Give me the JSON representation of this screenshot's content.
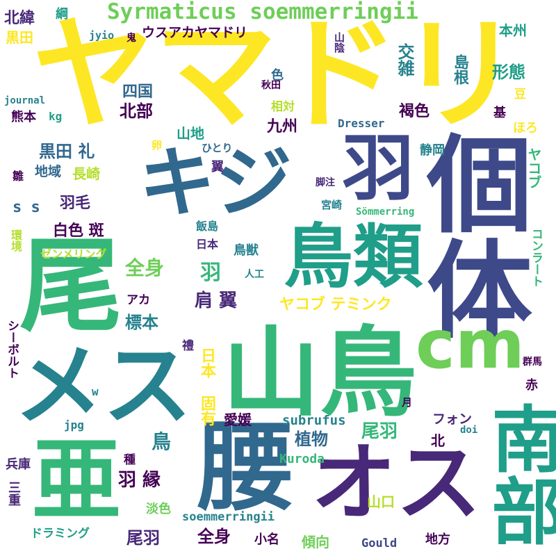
{
  "palette": {
    "yellow": "#fde725",
    "yellow_green": "#b5de2b",
    "light_green": "#6ece58",
    "green": "#35b779",
    "teal": "#1f9e89",
    "teal_blue": "#26828e",
    "blue": "#31688e",
    "indigo": "#3e4989",
    "purple": "#482878",
    "dark_purple": "#440154"
  },
  "words": {
    "yamadori": "ヤマドリ",
    "kiji": "キジ",
    "hane_big": "羽",
    "kotai": "個体",
    "chourui": "鳥類",
    "o": "尾",
    "yamadori_kanji": "山鳥",
    "cm": "cm",
    "mesu": "メス",
    "a": "亜",
    "koshi": "腰",
    "osu": "オス",
    "nanbu": "南部",
    "syrmaticus": "Syrmaticus soemmerringii",
    "hokui": "北緯",
    "kuroda_top": "黒田",
    "tsuna": "綱",
    "jyio": "jyio",
    "oni": "鬼",
    "usuakayamadori": "ウスアカヤマドリ",
    "sanin": "山陰",
    "honshu": "本州",
    "iro": "色",
    "kouzatsu": "交雑",
    "shimane": "島根",
    "keitai": "形態",
    "mame": "豆",
    "shikoku": "四国",
    "akita": "秋田",
    "journal": "journal",
    "soutai": "相対",
    "hokubu": "北部",
    "kasshoku": "褐色",
    "kumamoto": "熊本",
    "kg": "kg",
    "kyushu": "九州",
    "dresser": "Dresser",
    "ki": "基",
    "horo": "ほろ",
    "sanchi": "山地",
    "ran": "卵",
    "hitori": "ひとり",
    "shizuoka": "静岡",
    "kuroda_rei": "黒田 礼",
    "yasukobu": "ヤコブ",
    "hina": "雛",
    "chiiki": "地域",
    "nagasaki": "長崎",
    "tsubasa_small": "翼",
    "kyakuchu": "脚注",
    "ss": "s s",
    "umou": "羽毛",
    "miyazaki": "宮崎",
    "sommerring": "Sömmerring",
    "hakushoku_han": "白色 斑",
    "iijima": "飯島",
    "kankyo": "環境",
    "nihon": "日本",
    "concert": "コンラート",
    "zenmeringu": "ゼンメリング",
    "choujuu": "鳥獣",
    "jinkou": "人工",
    "zenshin_mid": "全身",
    "hane_mid": "羽",
    "kata_tsubasa": "肩 翼",
    "yakobu_temminck": "ヤコブ テミンク",
    "aka": "アカ",
    "siebold": "シーボルト",
    "hyouhon": "標本",
    "rei": "禮",
    "nihon_koyuu": "日本 固有",
    "gunma": "群馬",
    "w": "w",
    "aka_kanji": "赤",
    "tsuki": "月",
    "ehime": "愛媛",
    "subrufus": "subrufus",
    "jpg": "jpg",
    "tori": "鳥",
    "shokubutsu": "植物",
    "obane_mid": "尾羽",
    "fon": "フォン",
    "kita": "北",
    "doi": "doi",
    "hyogo": "兵庫",
    "shu": "種",
    "hane_fuchi": "羽 縁",
    "kuroda_latin": "Kuroda",
    "mie": "三重",
    "tanshoku": "淡色",
    "soemmerringii": "soemmerringii",
    "yamaguchi": "山口",
    "doraming": "ドラミング",
    "obane_low": "尾羽",
    "zenshin_low": "全身",
    "kona": "小名",
    "keikou": "傾向",
    "gould": "Gould",
    "chihou": "地方"
  }
}
